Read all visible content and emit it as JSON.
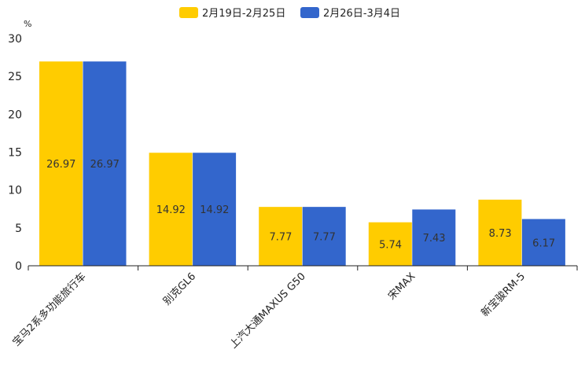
{
  "chart_data": {
    "type": "bar",
    "title": "",
    "ylabel": "%",
    "xlabel": "",
    "ylim": [
      0,
      30
    ],
    "yticks": [
      0,
      5,
      10,
      15,
      20,
      25,
      30
    ],
    "categories": [
      "宝马2系多功能旅行车",
      "别克GL6",
      "上汽大通MAXUS G50",
      "宋MAX",
      "新宝骏RM-5"
    ],
    "series": [
      {
        "name": "2月19日-2月25日",
        "color": "#ffcc00",
        "values": [
          26.97,
          14.92,
          7.77,
          5.74,
          8.73
        ]
      },
      {
        "name": "2月26日-3月4日",
        "color": "#3366cc",
        "values": [
          26.97,
          14.92,
          7.77,
          7.43,
          6.17
        ]
      }
    ],
    "legend": "top-center",
    "grid": false
  }
}
